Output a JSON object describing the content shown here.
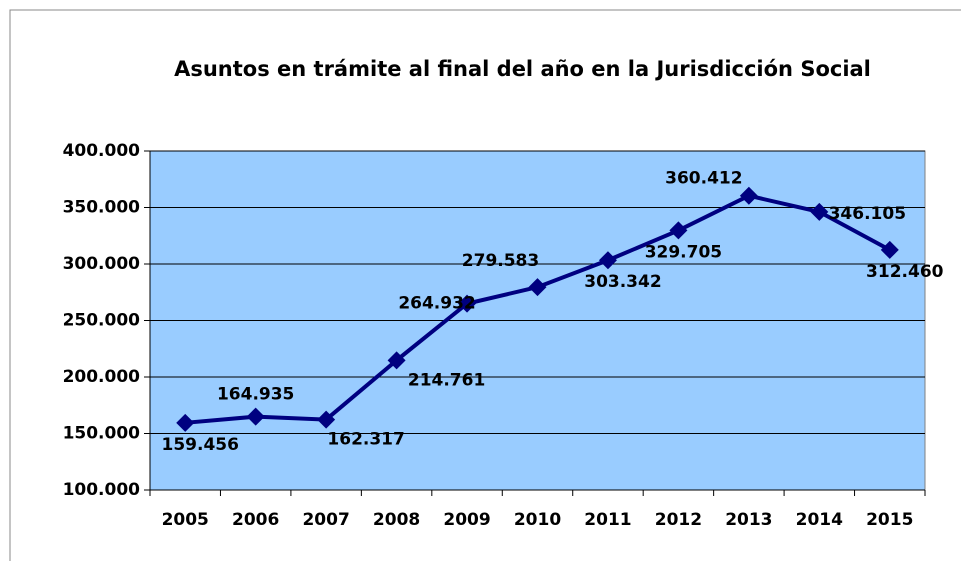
{
  "chart_data": {
    "type": "line",
    "title": "Asuntos en trámite al final del año en la Jurisdicción Social",
    "categories": [
      "2005",
      "2006",
      "2007",
      "2008",
      "2009",
      "2010",
      "2011",
      "2012",
      "2013",
      "2014",
      "2015"
    ],
    "series": [
      {
        "name": "Asuntos en trámite",
        "color": "#000080",
        "values": [
          159456,
          164935,
          162317,
          214761,
          264932,
          279583,
          303342,
          329705,
          360412,
          346105,
          312460
        ],
        "value_labels": [
          "159.456",
          "164.935",
          "162.317",
          "214.761",
          "264.932",
          "279.583",
          "303.342",
          "329.705",
          "360.412",
          "346.105",
          "312.460"
        ]
      }
    ],
    "ylim": [
      100000,
      400000
    ],
    "yticks": [
      {
        "value": 100000,
        "label": "100.000"
      },
      {
        "value": 150000,
        "label": "150.000"
      },
      {
        "value": 200000,
        "label": "200.000"
      },
      {
        "value": 250000,
        "label": "250.000"
      },
      {
        "value": 300000,
        "label": "300.000"
      },
      {
        "value": 350000,
        "label": "350.000"
      },
      {
        "value": 400000,
        "label": "400.000"
      }
    ],
    "grid": true,
    "plot_background": "#99ccff"
  }
}
